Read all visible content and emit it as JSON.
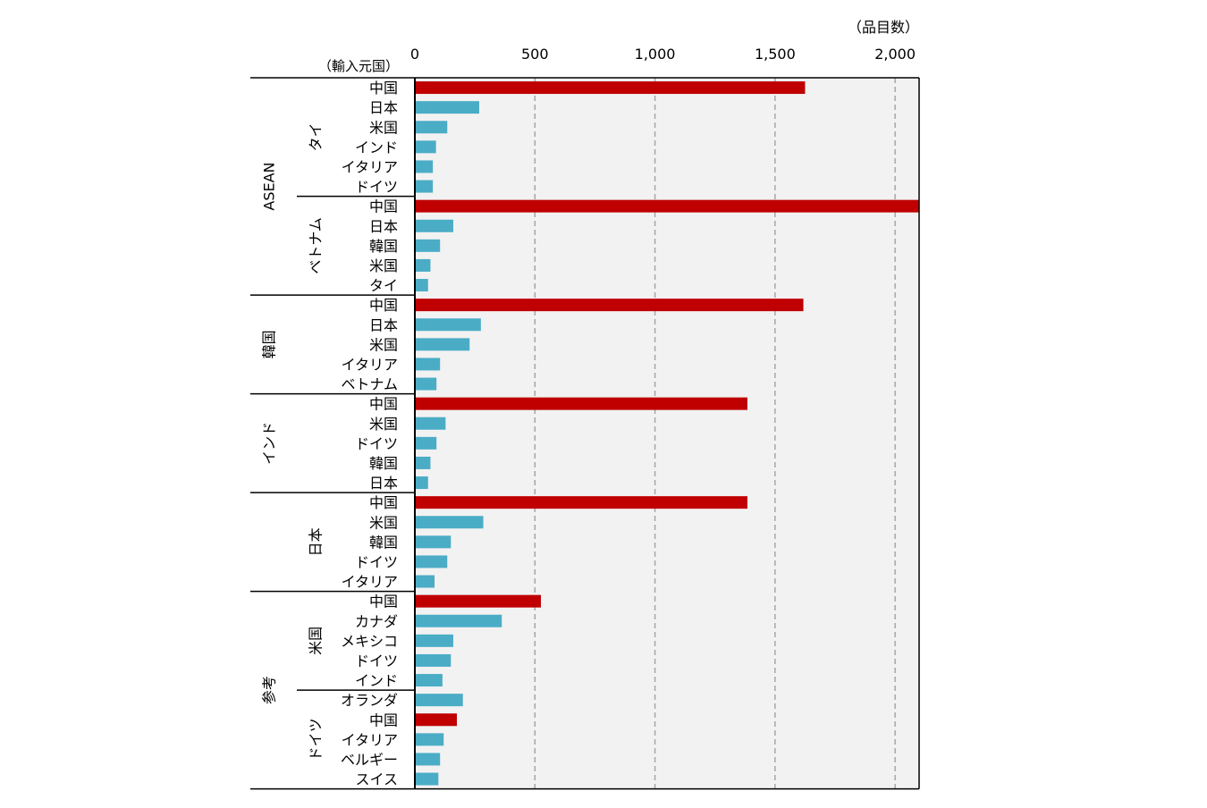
{
  "chart_data": {
    "type": "bar",
    "orientation": "horizontal",
    "unit_label": "（品目数）",
    "category_header": "（輸入元国）",
    "xlim": [
      0,
      2100
    ],
    "xticks": [
      0,
      500,
      1000,
      1500,
      2000
    ],
    "xtick_labels": [
      "0",
      "500",
      "1,000",
      "1,500",
      "2,000"
    ],
    "grid": "vertical-dashed",
    "colors": {
      "china": "#c00000",
      "other": "#4bacc6",
      "plot_bg": "#f2f2f2",
      "grid": "#a6a6a6"
    },
    "groups": [
      {
        "outer": "ASEAN",
        "name": "タイ",
        "bars": [
          {
            "label": "中国",
            "value": 1625
          },
          {
            "label": "日本",
            "value": 268
          },
          {
            "label": "米国",
            "value": 135
          },
          {
            "label": "インド",
            "value": 88
          },
          {
            "label": "イタリア",
            "value": 75
          },
          {
            "label": "ドイツ",
            "value": 75
          }
        ]
      },
      {
        "outer": "ASEAN",
        "name": "ベトナム",
        "bars": [
          {
            "label": "中国",
            "value": 2100
          },
          {
            "label": "日本",
            "value": 160
          },
          {
            "label": "韓国",
            "value": 105
          },
          {
            "label": "米国",
            "value": 65
          },
          {
            "label": "タイ",
            "value": 55
          }
        ]
      },
      {
        "outer": "",
        "name": "韓国",
        "bars": [
          {
            "label": "中国",
            "value": 1618
          },
          {
            "label": "日本",
            "value": 275
          },
          {
            "label": "米国",
            "value": 228
          },
          {
            "label": "イタリア",
            "value": 105
          },
          {
            "label": "ベトナム",
            "value": 90
          }
        ]
      },
      {
        "outer": "",
        "name": "インド",
        "bars": [
          {
            "label": "中国",
            "value": 1385
          },
          {
            "label": "米国",
            "value": 128
          },
          {
            "label": "ドイツ",
            "value": 90
          },
          {
            "label": "韓国",
            "value": 65
          },
          {
            "label": "日本",
            "value": 55
          }
        ]
      },
      {
        "outer": "",
        "name": "日本",
        "bars": [
          {
            "label": "中国",
            "value": 1385
          },
          {
            "label": "米国",
            "value": 285
          },
          {
            "label": "韓国",
            "value": 150
          },
          {
            "label": "ドイツ",
            "value": 135
          },
          {
            "label": "イタリア",
            "value": 82
          }
        ]
      },
      {
        "outer": "参考",
        "name": "米国",
        "bars": [
          {
            "label": "中国",
            "value": 525
          },
          {
            "label": "カナダ",
            "value": 362
          },
          {
            "label": "メキシコ",
            "value": 160
          },
          {
            "label": "ドイツ",
            "value": 150
          },
          {
            "label": "インド",
            "value": 115
          }
        ]
      },
      {
        "outer": "参考",
        "name": "ドイツ",
        "bars": [
          {
            "label": "オランダ",
            "value": 200
          },
          {
            "label": "中国",
            "value": 175
          },
          {
            "label": "イタリア",
            "value": 120
          },
          {
            "label": "ベルギー",
            "value": 105
          },
          {
            "label": "スイス",
            "value": 98
          }
        ]
      }
    ],
    "outer_labels": [
      {
        "text": "ASEAN",
        "groups": [
          0,
          1
        ]
      },
      {
        "text": "韓国",
        "groups": [
          2
        ]
      },
      {
        "text": "インド",
        "groups": [
          3
        ]
      },
      {
        "text": "参考",
        "groups": [
          5,
          6
        ]
      }
    ],
    "inner_labels": [
      {
        "text": "タイ",
        "group": 0
      },
      {
        "text": "ベトナム",
        "group": 1
      },
      {
        "text": "日本",
        "group": 4
      },
      {
        "text": "米国",
        "group": 5
      },
      {
        "text": "ドイツ",
        "group": 6
      }
    ]
  }
}
